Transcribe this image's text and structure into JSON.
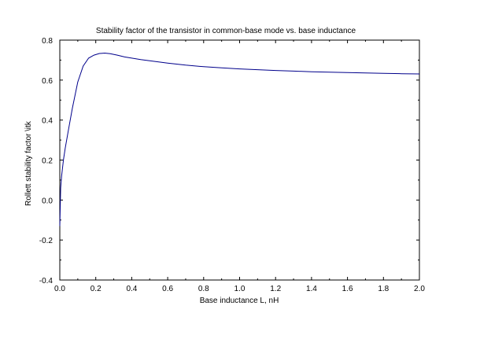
{
  "chart_data": {
    "type": "line",
    "title": "Stability factor of the transistor in common-base mode vs. base inductance",
    "xlabel": "Base inductance L, nH",
    "ylabel": "Rollett stability factor \\itk",
    "xlim": [
      0,
      2.0
    ],
    "ylim": [
      -0.4,
      0.8
    ],
    "x_ticks": [
      "0.0",
      "0.2",
      "0.4",
      "0.6",
      "0.8",
      "1.0",
      "1.2",
      "1.4",
      "1.6",
      "1.8",
      "2.0"
    ],
    "y_ticks": [
      "-0.4",
      "-0.2",
      "0.0",
      "0.2",
      "0.4",
      "0.6",
      "0.8"
    ],
    "grid": false,
    "line_color": "#00008b",
    "series": [
      {
        "x": [
          0.0,
          0.005,
          0.01,
          0.02,
          0.03,
          0.05,
          0.07,
          0.1,
          0.13,
          0.16,
          0.19,
          0.22,
          0.25,
          0.28,
          0.32,
          0.36,
          0.4,
          0.45,
          0.5,
          0.6,
          0.7,
          0.8,
          0.9,
          1.0,
          1.1,
          1.2,
          1.3,
          1.4,
          1.5,
          1.6,
          1.7,
          1.8,
          1.9,
          2.0
        ],
        "y": [
          -0.13,
          0.06,
          0.12,
          0.2,
          0.26,
          0.36,
          0.46,
          0.59,
          0.67,
          0.71,
          0.725,
          0.733,
          0.735,
          0.732,
          0.725,
          0.716,
          0.71,
          0.703,
          0.697,
          0.685,
          0.675,
          0.667,
          0.661,
          0.656,
          0.652,
          0.648,
          0.645,
          0.642,
          0.64,
          0.638,
          0.636,
          0.634,
          0.632,
          0.631
        ]
      }
    ]
  }
}
